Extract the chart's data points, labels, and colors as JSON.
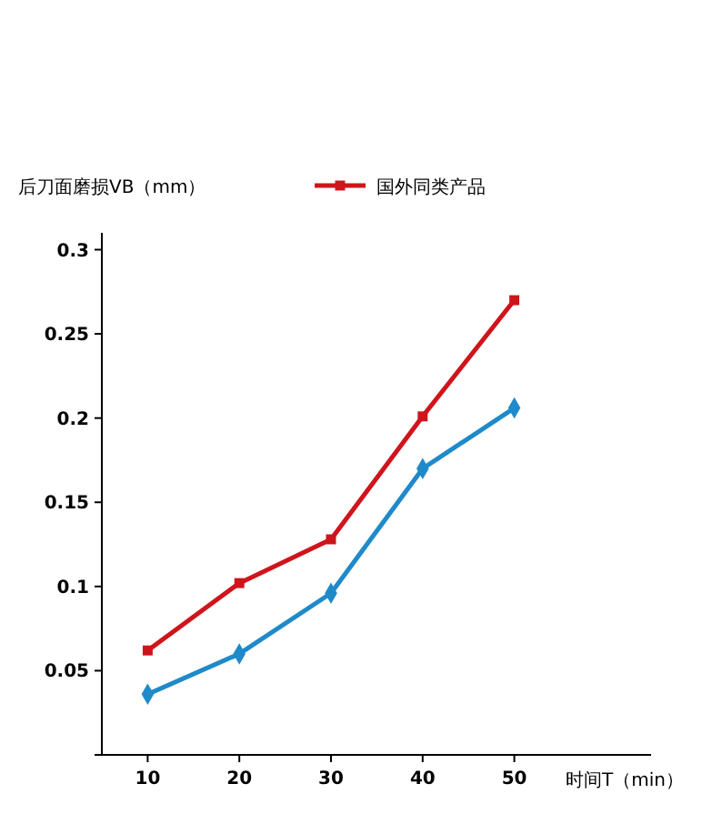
{
  "chart_data": {
    "type": "line",
    "xlabel": "时间T（min）",
    "ylabel": "后刀面磨损VB（mm）",
    "categories": [
      "10",
      "20",
      "30",
      "40",
      "50"
    ],
    "series": [
      {
        "name": "国外同类产品",
        "color": "#d0141c",
        "marker": "square",
        "values": [
          0.062,
          0.102,
          0.128,
          0.201,
          0.27
        ]
      },
      {
        "color": "#1f8ac9",
        "marker": "diamond",
        "values": [
          0.036,
          0.06,
          0.096,
          0.17,
          0.206
        ]
      }
    ],
    "ylim": [
      0,
      0.31
    ],
    "yticks": [
      {
        "value": 0,
        "label": null
      },
      0.05,
      0.1,
      0.15,
      0.2,
      0.25,
      0.3
    ],
    "legend": "top right"
  }
}
